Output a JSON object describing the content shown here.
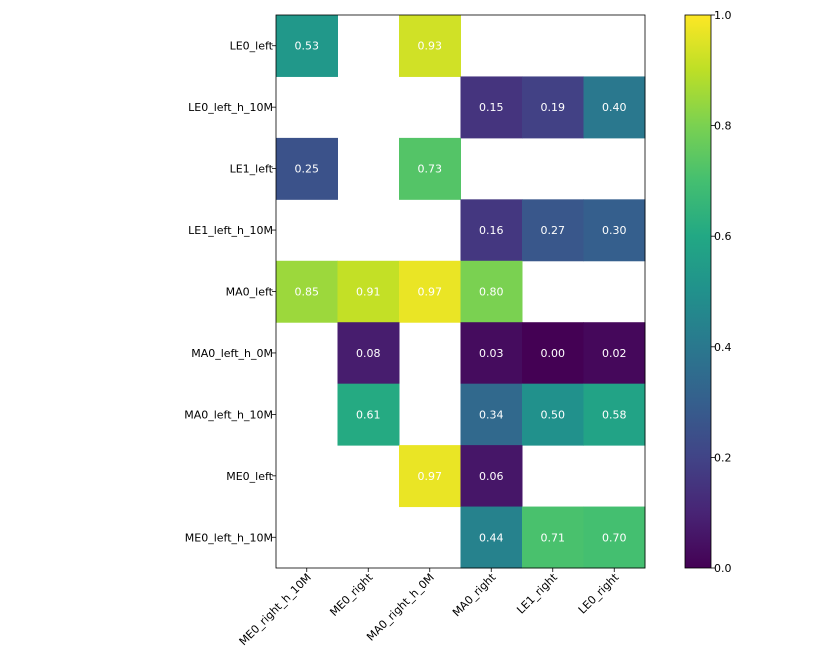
{
  "chart_data": {
    "type": "heatmap",
    "colormap": "viridis",
    "rows": [
      "LE0_left",
      "LE0_left_h_10M",
      "LE1_left",
      "LE1_left_h_10M",
      "MA0_left",
      "MA0_left_h_0M",
      "MA0_left_h_10M",
      "ME0_left",
      "ME0_left_h_10M"
    ],
    "columns": [
      "ME0_right_h_10M",
      "ME0_right",
      "MA0_right_h_0M",
      "MA0_right",
      "LE1_right",
      "LE0_right"
    ],
    "values": [
      [
        0.53,
        null,
        0.93,
        null,
        null,
        null
      ],
      [
        null,
        null,
        null,
        0.15,
        0.19,
        0.4
      ],
      [
        0.25,
        null,
        0.73,
        null,
        null,
        null
      ],
      [
        null,
        null,
        null,
        0.16,
        0.27,
        0.3
      ],
      [
        0.85,
        0.91,
        0.97,
        0.8,
        null,
        null
      ],
      [
        null,
        0.08,
        null,
        0.03,
        0.0,
        0.02
      ],
      [
        null,
        0.61,
        null,
        0.34,
        0.5,
        0.58
      ],
      [
        null,
        null,
        0.97,
        0.06,
        null,
        null
      ],
      [
        null,
        null,
        null,
        0.44,
        0.71,
        0.7
      ]
    ],
    "labels": [
      [
        "0.53",
        "",
        "0.93",
        "",
        "",
        ""
      ],
      [
        "",
        "",
        "",
        "0.15",
        "0.19",
        "0.40"
      ],
      [
        "0.25",
        "",
        "0.73",
        "",
        "",
        ""
      ],
      [
        "",
        "",
        "",
        "0.16",
        "0.27",
        "0.30"
      ],
      [
        "0.85",
        "0.91",
        "0.97",
        "0.80",
        "",
        ""
      ],
      [
        "",
        "0.08",
        "",
        "0.03",
        "0.00",
        "0.02"
      ],
      [
        "",
        "0.61",
        "",
        "0.34",
        "0.50",
        "0.58"
      ],
      [
        "",
        "",
        "0.97",
        "0.06",
        "",
        ""
      ],
      [
        "",
        "",
        "",
        "0.44",
        "0.71",
        "0.70"
      ]
    ],
    "colorbar": {
      "range": [
        0.0,
        1.0
      ],
      "ticks": [
        "0.0",
        "0.2",
        "0.4",
        "0.6",
        "0.8",
        "1.0"
      ]
    }
  }
}
